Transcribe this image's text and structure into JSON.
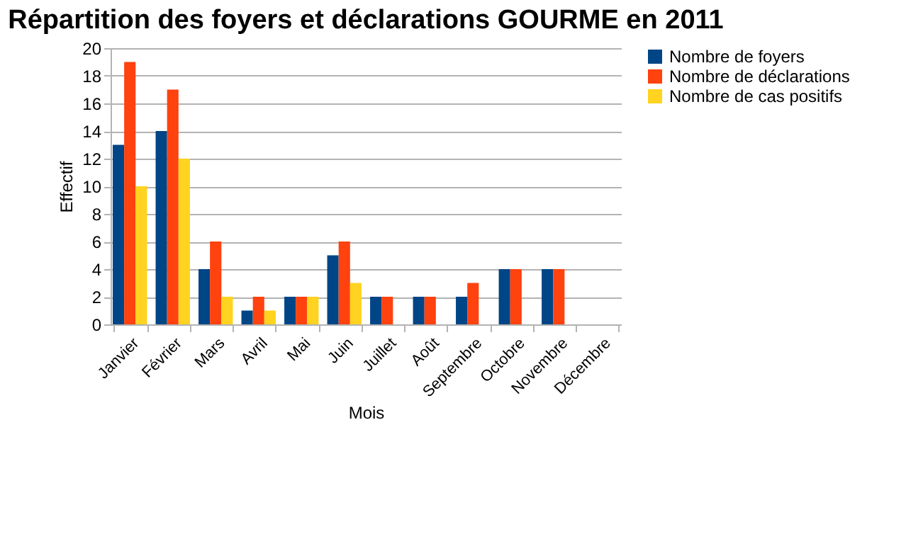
{
  "chart_data": {
    "type": "bar",
    "title": "Répartition des foyers et déclarations GOURME en 2011",
    "xlabel": "Mois",
    "ylabel": "Effectif",
    "categories": [
      "Janvier",
      "Février",
      "Mars",
      "Avril",
      "Mai",
      "Juin",
      "Juillet",
      "Août",
      "Septembre",
      "Octobre",
      "Novembre",
      "Décembre"
    ],
    "series": [
      {
        "name": "Nombre de foyers",
        "color": "#004586",
        "values": [
          13,
          14,
          4,
          1,
          2,
          5,
          2,
          2,
          2,
          4,
          4,
          null
        ]
      },
      {
        "name": "Nombre de déclarations",
        "color": "#ff420e",
        "values": [
          19,
          17,
          6,
          2,
          2,
          6,
          2,
          2,
          3,
          4,
          4,
          null
        ]
      },
      {
        "name": "Nombre de cas positifs",
        "color": "#ffd320",
        "values": [
          10,
          12,
          2,
          1,
          2,
          3,
          null,
          null,
          null,
          null,
          null,
          null
        ]
      }
    ],
    "ylim": [
      0,
      20
    ],
    "yticks": [
      0,
      2,
      4,
      6,
      8,
      10,
      12,
      14,
      16,
      18,
      20
    ],
    "grid": "y",
    "legend": "right"
  }
}
